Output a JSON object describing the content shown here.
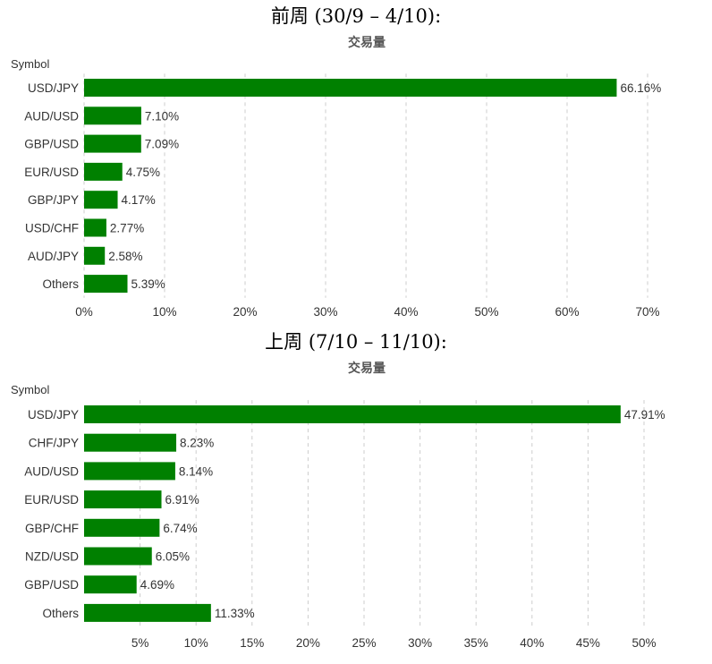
{
  "sections": [
    {
      "title": "前周 (30/9 – 4/10):"
    },
    {
      "title": "上周 (7/10 – 11/10):"
    }
  ],
  "chart_data": [
    {
      "type": "bar",
      "orientation": "horizontal",
      "title": "交易量",
      "ylabel": "Symbol",
      "categories": [
        "USD/JPY",
        "AUD/USD",
        "GBP/USD",
        "EUR/USD",
        "GBP/JPY",
        "USD/CHF",
        "AUD/JPY",
        "Others"
      ],
      "values": [
        66.16,
        7.1,
        7.09,
        4.75,
        4.17,
        2.77,
        2.58,
        5.39
      ],
      "value_labels": [
        "66.16%",
        "7.10%",
        "7.09%",
        "4.75%",
        "4.17%",
        "2.77%",
        "2.58%",
        "5.39%"
      ],
      "xlim": [
        0,
        70
      ],
      "xticks": [
        0,
        10,
        20,
        30,
        40,
        50,
        60,
        70
      ],
      "xtick_labels": [
        "0%",
        "10%",
        "20%",
        "30%",
        "40%",
        "50%",
        "60%",
        "70%"
      ],
      "grid": true,
      "color": "#008000"
    },
    {
      "type": "bar",
      "orientation": "horizontal",
      "title": "交易量",
      "ylabel": "Symbol",
      "categories": [
        "USD/JPY",
        "CHF/JPY",
        "AUD/USD",
        "EUR/USD",
        "GBP/CHF",
        "NZD/USD",
        "GBP/USD",
        "Others"
      ],
      "values": [
        47.91,
        8.23,
        8.14,
        6.91,
        6.74,
        6.05,
        4.69,
        11.33
      ],
      "value_labels": [
        "47.91%",
        "8.23%",
        "8.14%",
        "6.91%",
        "6.74%",
        "6.05%",
        "4.69%",
        "11.33%"
      ],
      "xlim": [
        0,
        50
      ],
      "xticks": [
        5,
        10,
        15,
        20,
        25,
        30,
        35,
        40,
        45,
        50
      ],
      "xtick_labels": [
        "5%",
        "10%",
        "15%",
        "20%",
        "25%",
        "30%",
        "35%",
        "40%",
        "45%",
        "50%"
      ],
      "grid": true,
      "color": "#008000"
    }
  ]
}
